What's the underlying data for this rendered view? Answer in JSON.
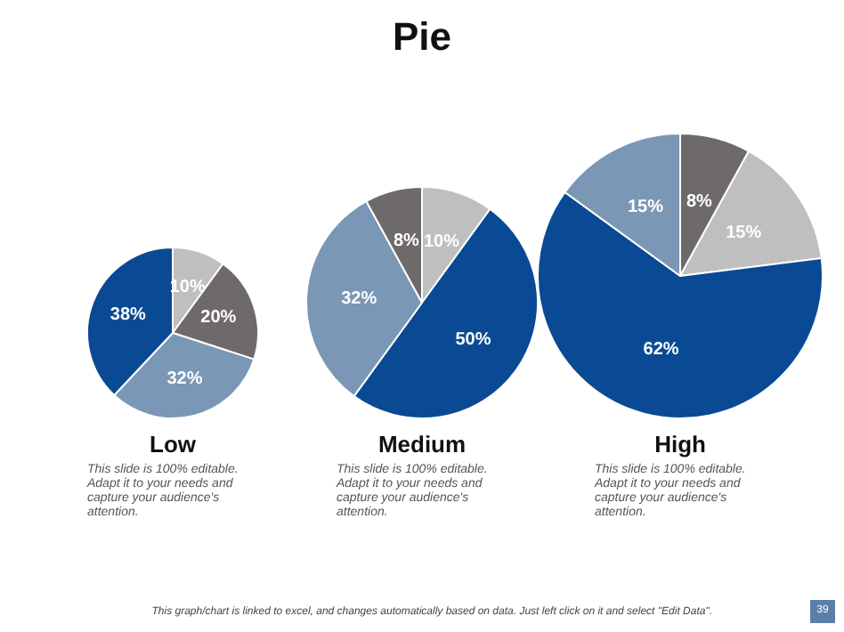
{
  "chart_data": [
    {
      "type": "pie",
      "title": "Low",
      "categories": [
        null,
        null,
        null,
        null
      ],
      "values": [
        10,
        20,
        32,
        38
      ],
      "colors": [
        "#bfbfbf",
        "#6e6a6a",
        "#7a97b5",
        "#0a4a94"
      ],
      "value_labels": [
        "10%",
        "20%",
        "32%",
        "38%"
      ],
      "annotations": [
        "This slide is 100% editable. Adapt it to your needs and capture your audience's attention.",
        "Pie",
        "This graph/chart is linked to excel, and changes automatically based on data. Just left click on it and select \"Edit Data\"."
      ]
    },
    {
      "type": "pie",
      "title": "Medium",
      "categories": [
        null,
        null,
        null,
        null
      ],
      "values": [
        10,
        50,
        32,
        8
      ],
      "colors": [
        "#bfbfbf",
        "#0a4a94",
        "#7a97b5",
        "#6e6a6a"
      ],
      "value_labels": [
        "10%",
        "50%",
        "32%",
        "8%"
      ],
      "annotations": [
        "This slide is 100% editable. Adapt it to your needs and capture your audience's attention."
      ]
    },
    {
      "type": "pie",
      "title": "High",
      "categories": [
        null,
        null,
        null,
        null
      ],
      "values": [
        8,
        15,
        62,
        15
      ],
      "colors": [
        "#6e6a6a",
        "#bfbfbf",
        "#0a4a94",
        "#7a97b5"
      ],
      "value_labels": [
        "8%",
        "15%",
        "62%",
        "15%"
      ],
      "annotations": [
        "This slide is 100% editable. Adapt it to your needs and capture your audience's attention.",
        "39"
      ]
    }
  ]
}
